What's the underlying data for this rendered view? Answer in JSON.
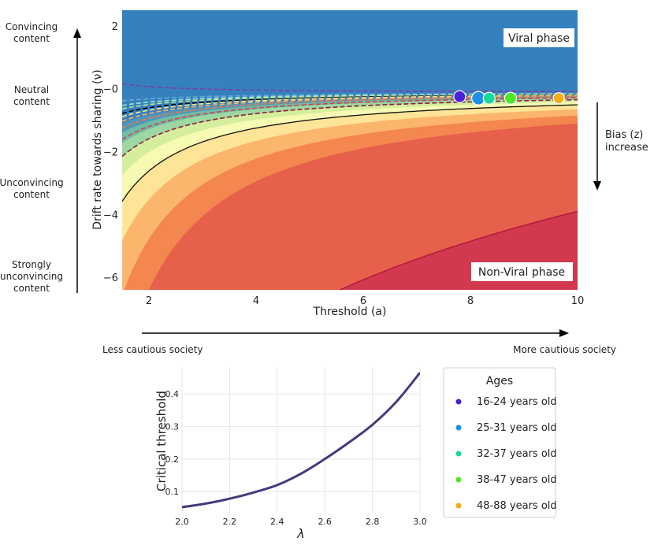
{
  "chart_data": [
    {
      "type": "heatmap",
      "title": "",
      "xlabel": "Threshold (a)",
      "ylabel": "Drift rate towards sharing (ν)",
      "xlim": [
        1.5,
        10
      ],
      "ylim": [
        -6.4,
        2.5
      ],
      "xticks": [
        2,
        4,
        6,
        8,
        10
      ],
      "yticks": [
        2,
        0,
        -2,
        -4,
        -6
      ],
      "xtick_labels": [
        "2",
        "4",
        "6",
        "8",
        "10"
      ],
      "ytick_labels": [
        "2",
        "−0",
        "−2",
        "−4",
        "−6"
      ],
      "phase_labels": [
        "Viral phase",
        "Non-Viral phase"
      ],
      "content_labels": [
        {
          "text": [
            "Convincing",
            "content"
          ],
          "y": 2
        },
        {
          "text": [
            "Neutral",
            "content"
          ],
          "y": 0
        },
        {
          "text": [
            "Unconvincing",
            "content"
          ],
          "y": -3.2
        },
        {
          "text": [
            "Strongly",
            "unconvincing",
            "content"
          ],
          "y": -5.9
        }
      ],
      "bias_label": [
        "Bias (z)",
        "increase"
      ],
      "society_labels": [
        "Less cautious society",
        "More cautious society"
      ],
      "contour_bands": [
        {
          "level": 0.9,
          "color": "#3a7fbb"
        },
        {
          "level": 0.8,
          "color": "#4f97b8"
        },
        {
          "level": 0.7,
          "color": "#70bba6"
        },
        {
          "level": 0.6,
          "color": "#9fd7a3"
        },
        {
          "level": 0.5,
          "color": "#d4ee9d"
        },
        {
          "level": 0.4,
          "color": "#f6fab2"
        },
        {
          "level": 0.3,
          "color": "#fde497"
        },
        {
          "level": 0.2,
          "color": "#fbb56c"
        },
        {
          "level": 0.1,
          "color": "#f4864f"
        },
        {
          "level": 0.01,
          "color": "#e6604b"
        },
        {
          "level": 0.0,
          "color": "#d2394e"
        }
      ],
      "background_top_color": "#3581bd",
      "band_offsets": [
        0.3,
        0.55,
        0.85,
        1.2,
        1.65,
        2.25,
        3.1,
        4.4,
        6.2,
        8.5,
        30
      ],
      "critical_curve_k": -0.3,
      "dashed_curves": [
        {
          "k": 1.0,
          "color": "#7b3fa6"
        },
        {
          "k": 0.25,
          "color": "#6aa9d6"
        },
        {
          "k": 0.05,
          "color": "#9fe3d0"
        },
        {
          "k": -0.1,
          "color": "#c3e690"
        },
        {
          "k": -0.3,
          "color": "#000000"
        },
        {
          "k": -0.45,
          "color": "#f6f089"
        },
        {
          "k": -0.65,
          "color": "#f5b56b"
        },
        {
          "k": -0.95,
          "color": "#e07b52"
        },
        {
          "k": -1.45,
          "color": "#d0434a"
        },
        {
          "k": -2.2,
          "color": "#8b1d3f"
        }
      ],
      "solid_curves": [
        {
          "offset": 3.1,
          "color": "#111111"
        },
        {
          "offset": 30,
          "color": "#b0123f"
        }
      ],
      "points": [
        {
          "x": 7.8,
          "y": -0.25,
          "color": "#4a1fd6",
          "size": 13
        },
        {
          "x": 8.15,
          "y": -0.3,
          "color": "#1f8fe8",
          "size": 15
        },
        {
          "x": 8.35,
          "y": -0.3,
          "color": "#18d99c",
          "size": 13
        },
        {
          "x": 8.75,
          "y": -0.3,
          "color": "#4ce829",
          "size": 13
        },
        {
          "x": 9.65,
          "y": -0.3,
          "color": "#f7ad18",
          "size": 12
        }
      ]
    },
    {
      "type": "line",
      "title": "",
      "xlabel": "λ",
      "ylabel": "Critical threshold",
      "xlim": [
        2.0,
        3.0
      ],
      "ylim": [
        0.035,
        0.48
      ],
      "xticks": [
        2.0,
        2.2,
        2.4,
        2.6,
        2.8,
        3.0
      ],
      "yticks": [
        0.1,
        0.2,
        0.3,
        0.4
      ],
      "xtick_labels": [
        "2.0",
        "2.2",
        "2.4",
        "2.6",
        "2.8",
        "3.0"
      ],
      "ytick_labels": [
        "0.1",
        "0.2",
        "0.3",
        "0.4"
      ],
      "grid": true,
      "series": [
        {
          "name": "critical threshold",
          "color": "#45397f",
          "x": [
            2.0,
            2.1,
            2.2,
            2.3,
            2.4,
            2.5,
            2.6,
            2.7,
            2.8,
            2.9,
            3.0
          ],
          "y": [
            0.052,
            0.063,
            0.078,
            0.097,
            0.12,
            0.155,
            0.2,
            0.25,
            0.305,
            0.375,
            0.465
          ]
        }
      ],
      "legend": {
        "title": "Ages",
        "placement": "right",
        "entries": [
          {
            "label": "16-24 years old",
            "color": "#4a1fd6"
          },
          {
            "label": "25-31 years old",
            "color": "#1f8fe8"
          },
          {
            "label": "32-37 years old",
            "color": "#18d99c"
          },
          {
            "label": "38-47 years old",
            "color": "#4ce829"
          },
          {
            "label": "48-88 years old",
            "color": "#f7ad18"
          }
        ]
      }
    }
  ]
}
